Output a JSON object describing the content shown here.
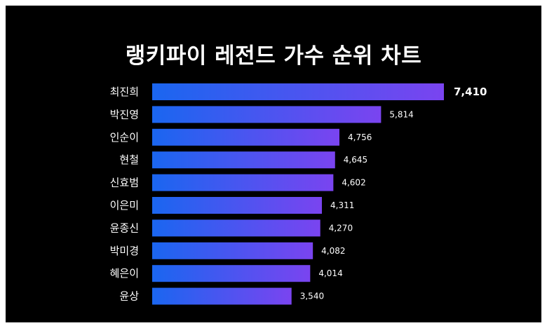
{
  "colors": {
    "background": "#000000",
    "bar_start": "#1a66f0",
    "bar_end": "#7a44f0",
    "text": "#ffffff"
  },
  "chart_data": {
    "type": "bar",
    "orientation": "horizontal",
    "title": "랭키파이 레전드 가수 순위 차트",
    "categories": [
      "최진희",
      "박진영",
      "인순이",
      "현철",
      "신효범",
      "이은미",
      "윤종신",
      "박미경",
      "혜은이",
      "윤상"
    ],
    "values": [
      7410,
      5814,
      4756,
      4645,
      4602,
      4311,
      4270,
      4082,
      4014,
      3540
    ],
    "value_labels": [
      "7,410",
      "5,814",
      "4,756",
      "4,645",
      "4,602",
      "4,311",
      "4,270",
      "4,082",
      "4,014",
      "3,540"
    ],
    "xlim": [
      0,
      7410
    ],
    "grid": false,
    "legend": "none"
  }
}
